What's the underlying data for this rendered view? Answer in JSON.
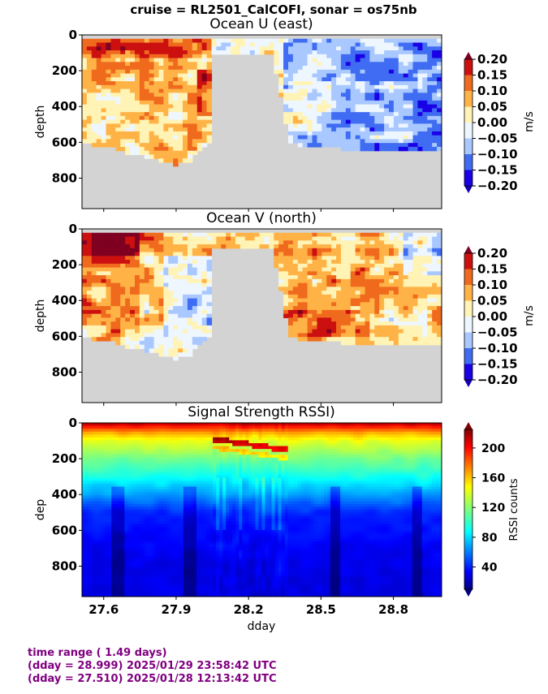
{
  "figure": {
    "suptitle": "cruise = RL2501_CalCOFI,  sonar = os75nb",
    "xlabel": "dday",
    "footer": {
      "line1": "time range ( 1.49 days)",
      "line2": "(dday = 28.999) 2025/01/29 23:58:42 UTC",
      "line3": "(dday = 27.510) 2025/01/28 12:13:42 UTC"
    },
    "colors": {
      "no_data": "#d3d3d3",
      "footer_text": "#800080"
    }
  },
  "chart_data": [
    {
      "type": "heatmap",
      "title": "Ocean U (east)",
      "xlabel": "",
      "ylabel": "depth",
      "xlim": [
        27.51,
        29.0
      ],
      "ylim": [
        970,
        0
      ],
      "xticks": [
        "27.6",
        "27.9",
        "28.2",
        "28.5",
        "28.8"
      ],
      "yticks": [
        "0",
        "200",
        "400",
        "600",
        "800"
      ],
      "colorbar": {
        "label": "m/s",
        "range": [
          -0.2,
          0.2
        ],
        "ticks": [
          "0.20",
          "0.15",
          "0.10",
          "0.05",
          "0.00",
          "−0.05",
          "−0.10",
          "−0.15",
          "−0.20"
        ],
        "colormap": "jet-discrete-8"
      },
      "no_data_depth_profile": {
        "x": [
          27.51,
          27.6,
          27.7,
          27.8,
          27.85,
          27.9,
          27.95,
          28.04,
          28.05,
          28.3,
          28.37,
          28.4,
          28.5,
          28.6,
          28.8,
          29.0
        ],
        "max_depth": [
          610,
          620,
          660,
          690,
          715,
          725,
          710,
          600,
          105,
          105,
          600,
          615,
          620,
          640,
          650,
          640
        ]
      },
      "pattern": "positive (eastward) flow before dday 28.05, negative (westward) flow after dday 28.35"
    },
    {
      "type": "heatmap",
      "title": "Ocean V (north)",
      "xlabel": "",
      "ylabel": "depth",
      "xlim": [
        27.51,
        29.0
      ],
      "ylim": [
        970,
        0
      ],
      "xticks": [
        "27.6",
        "27.9",
        "28.2",
        "28.5",
        "28.8"
      ],
      "yticks": [
        "0",
        "200",
        "400",
        "600",
        "800"
      ],
      "colorbar": {
        "label": "m/s",
        "range": [
          -0.2,
          0.2
        ],
        "ticks": [
          "0.20",
          "0.15",
          "0.10",
          "0.05",
          "0.00",
          "−0.05",
          "−0.10",
          "−0.15",
          "−0.20"
        ],
        "colormap": "jet-discrete-8"
      },
      "no_data_depth_profile": {
        "x": [
          27.51,
          27.6,
          27.7,
          27.8,
          27.85,
          27.9,
          27.95,
          28.04,
          28.05,
          28.3,
          28.37,
          28.4,
          28.5,
          28.6,
          28.8,
          29.0
        ],
        "max_depth": [
          610,
          620,
          660,
          690,
          715,
          725,
          710,
          600,
          105,
          105,
          600,
          615,
          620,
          640,
          650,
          640
        ]
      },
      "pattern": "strong northward flow near surface before dday 27.75, weak northward flow after dday 28.35"
    },
    {
      "type": "heatmap",
      "title": "Signal Strength RSSI)",
      "xlabel": "dday",
      "ylabel": "dep",
      "xlim": [
        27.51,
        29.0
      ],
      "ylim": [
        970,
        0
      ],
      "xticks": [
        "27.6",
        "27.9",
        "28.2",
        "28.5",
        "28.8"
      ],
      "yticks": [
        "0",
        "200",
        "400",
        "600",
        "800"
      ],
      "colorbar": {
        "label": "RSSI counts",
        "range": [
          10,
          225
        ],
        "ticks": [
          "200",
          "160",
          "120",
          "80",
          "40"
        ],
        "colormap": "jet"
      },
      "profile": {
        "depth": [
          0,
          30,
          60,
          100,
          200,
          300,
          400,
          500,
          700,
          970
        ],
        "rssi": [
          215,
          185,
          160,
          140,
          115,
          95,
          70,
          45,
          35,
          30
        ]
      },
      "pattern": "strong scattering layer near dday 28.05-28.35 between 80 and 250 m; dark vertical bands near 27.65, 27.95, 28.55, 28.9"
    }
  ]
}
